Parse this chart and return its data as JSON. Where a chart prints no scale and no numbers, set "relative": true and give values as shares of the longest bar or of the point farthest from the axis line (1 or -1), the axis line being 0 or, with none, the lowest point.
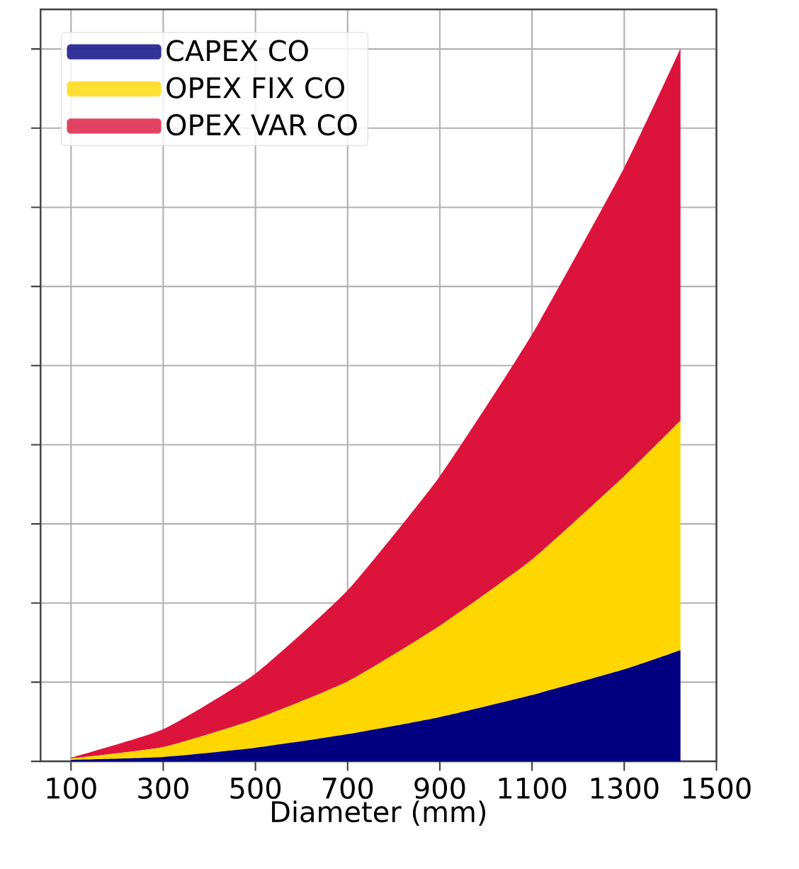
{
  "chart_data": {
    "type": "area",
    "stacked": true,
    "relative": true,
    "xlabel": "Diameter (mm)",
    "x": [
      100,
      300,
      500,
      700,
      900,
      1100,
      1300,
      1422
    ],
    "xlim": [
      34,
      1500
    ],
    "xticks": [
      100,
      300,
      500,
      700,
      900,
      1100,
      1300,
      1500
    ],
    "series": [
      {
        "name": "CAPEX CO",
        "color": "#000080",
        "values": [
          0.002,
          0.006,
          0.019,
          0.038,
          0.062,
          0.093,
          0.129,
          0.156
        ]
      },
      {
        "name": "OPEX FIX CO",
        "color": "#ffd700",
        "values": [
          0.002,
          0.014,
          0.04,
          0.074,
          0.128,
          0.19,
          0.271,
          0.322
        ]
      },
      {
        "name": "OPEX VAR CO",
        "color": "#dc143c",
        "values": [
          0.001,
          0.025,
          0.064,
          0.128,
          0.21,
          0.316,
          0.433,
          0.522
        ]
      }
    ],
    "grid": true,
    "legend": "top left"
  }
}
